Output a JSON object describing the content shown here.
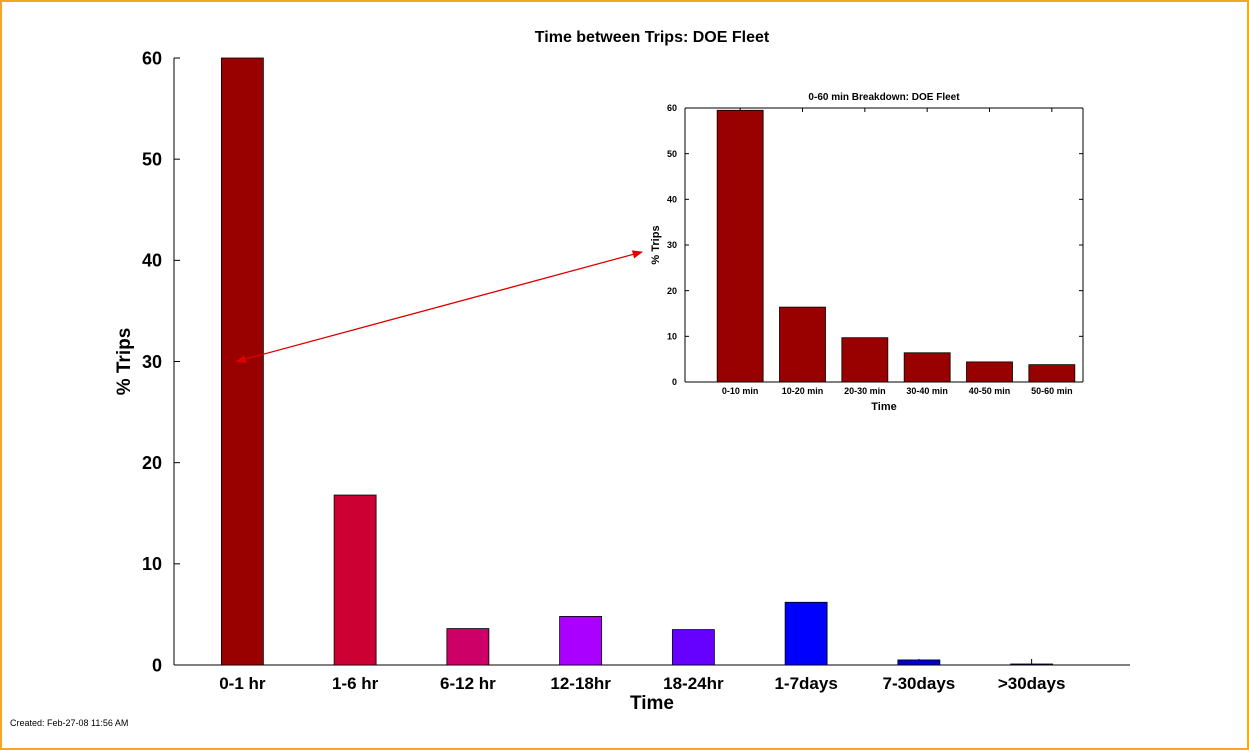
{
  "chart_data": [
    {
      "type": "bar",
      "title": "Time between Trips: DOE Fleet",
      "xlabel": "Time",
      "ylabel": "% Trips",
      "ylim": [
        0,
        60
      ],
      "yticks": [
        0,
        10,
        20,
        30,
        40,
        50,
        60
      ],
      "grid": false,
      "categories": [
        "0-1 hr",
        "1-6 hr",
        "6-12 hr",
        "12-18hr",
        "18-24hr",
        "1-7days",
        "7-30days",
        ">30days"
      ],
      "values": [
        60,
        16.8,
        3.6,
        4.8,
        3.5,
        6.2,
        0.5,
        0.1
      ],
      "bar_colors": [
        "#990000",
        "#cc0033",
        "#cc0066",
        "#aa00ff",
        "#6600ff",
        "#0000ff",
        "#0000cc",
        "#000099"
      ]
    },
    {
      "type": "bar",
      "title": "0-60 min Breakdown: DOE Fleet",
      "xlabel": "Time",
      "ylabel": "% Trips",
      "ylim": [
        0,
        60
      ],
      "yticks": [
        0,
        10,
        20,
        30,
        40,
        50,
        60
      ],
      "grid": false,
      "categories": [
        "0-10 min",
        "10-20 min",
        "20-30 min",
        "30-40 min",
        "40-50 min",
        "50-60 min"
      ],
      "values": [
        59.5,
        16.4,
        9.7,
        6.4,
        4.4,
        3.8
      ],
      "bar_colors": [
        "#990000",
        "#990000",
        "#990000",
        "#990000",
        "#990000",
        "#990000"
      ]
    }
  ],
  "annotation": {
    "arrow_color": "#dd0000",
    "from_label": "0-1 hr",
    "to_label": "0-60 min Breakdown: DOE Fleet"
  },
  "footer": {
    "created": "Created: Feb-27-08 11:56 AM"
  }
}
